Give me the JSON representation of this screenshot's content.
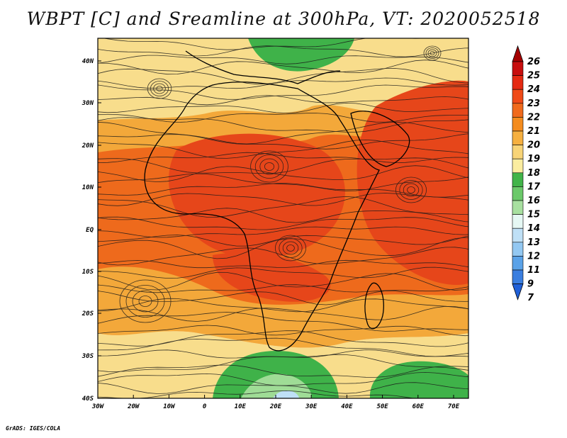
{
  "title": "WBPT [C] and Sreamline at 300hPa, VT: 2020052518",
  "credit": "GrADS: IGES/COLA",
  "map": {
    "lat_labels": [
      "40N",
      "30N",
      "20N",
      "10N",
      "EQ",
      "10S",
      "20S",
      "30S",
      "40S"
    ],
    "lon_labels": [
      "30W",
      "20W",
      "10W",
      "0",
      "10E",
      "20E",
      "30E",
      "40E",
      "50E",
      "60E",
      "70E"
    ]
  },
  "colorbar": {
    "labels": [
      "26",
      "25",
      "24",
      "23",
      "22",
      "21",
      "20",
      "19",
      "18",
      "17",
      "16",
      "15",
      "14",
      "13",
      "12",
      "11",
      "9",
      "7"
    ],
    "colors": [
      "#a50000",
      "#c80e0e",
      "#e52a12",
      "#f04a18",
      "#f06a1c",
      "#f48c1e",
      "#f6b040",
      "#f8d477",
      "#fbeda0",
      "#41b449",
      "#6bc96a",
      "#a8e0a0",
      "#e6f8f4",
      "#bfe0f6",
      "#93c8f2",
      "#5aa2e8",
      "#3a7ee0",
      "#2060d8"
    ]
  },
  "fill_colors": {
    "cool_yellow": "#f8dd8c",
    "orange": "#f3a83a",
    "deep_orange": "#ee6a1c",
    "red_orange": "#e6461a",
    "green": "#3fb249",
    "light_green": "#9fdc96"
  }
}
